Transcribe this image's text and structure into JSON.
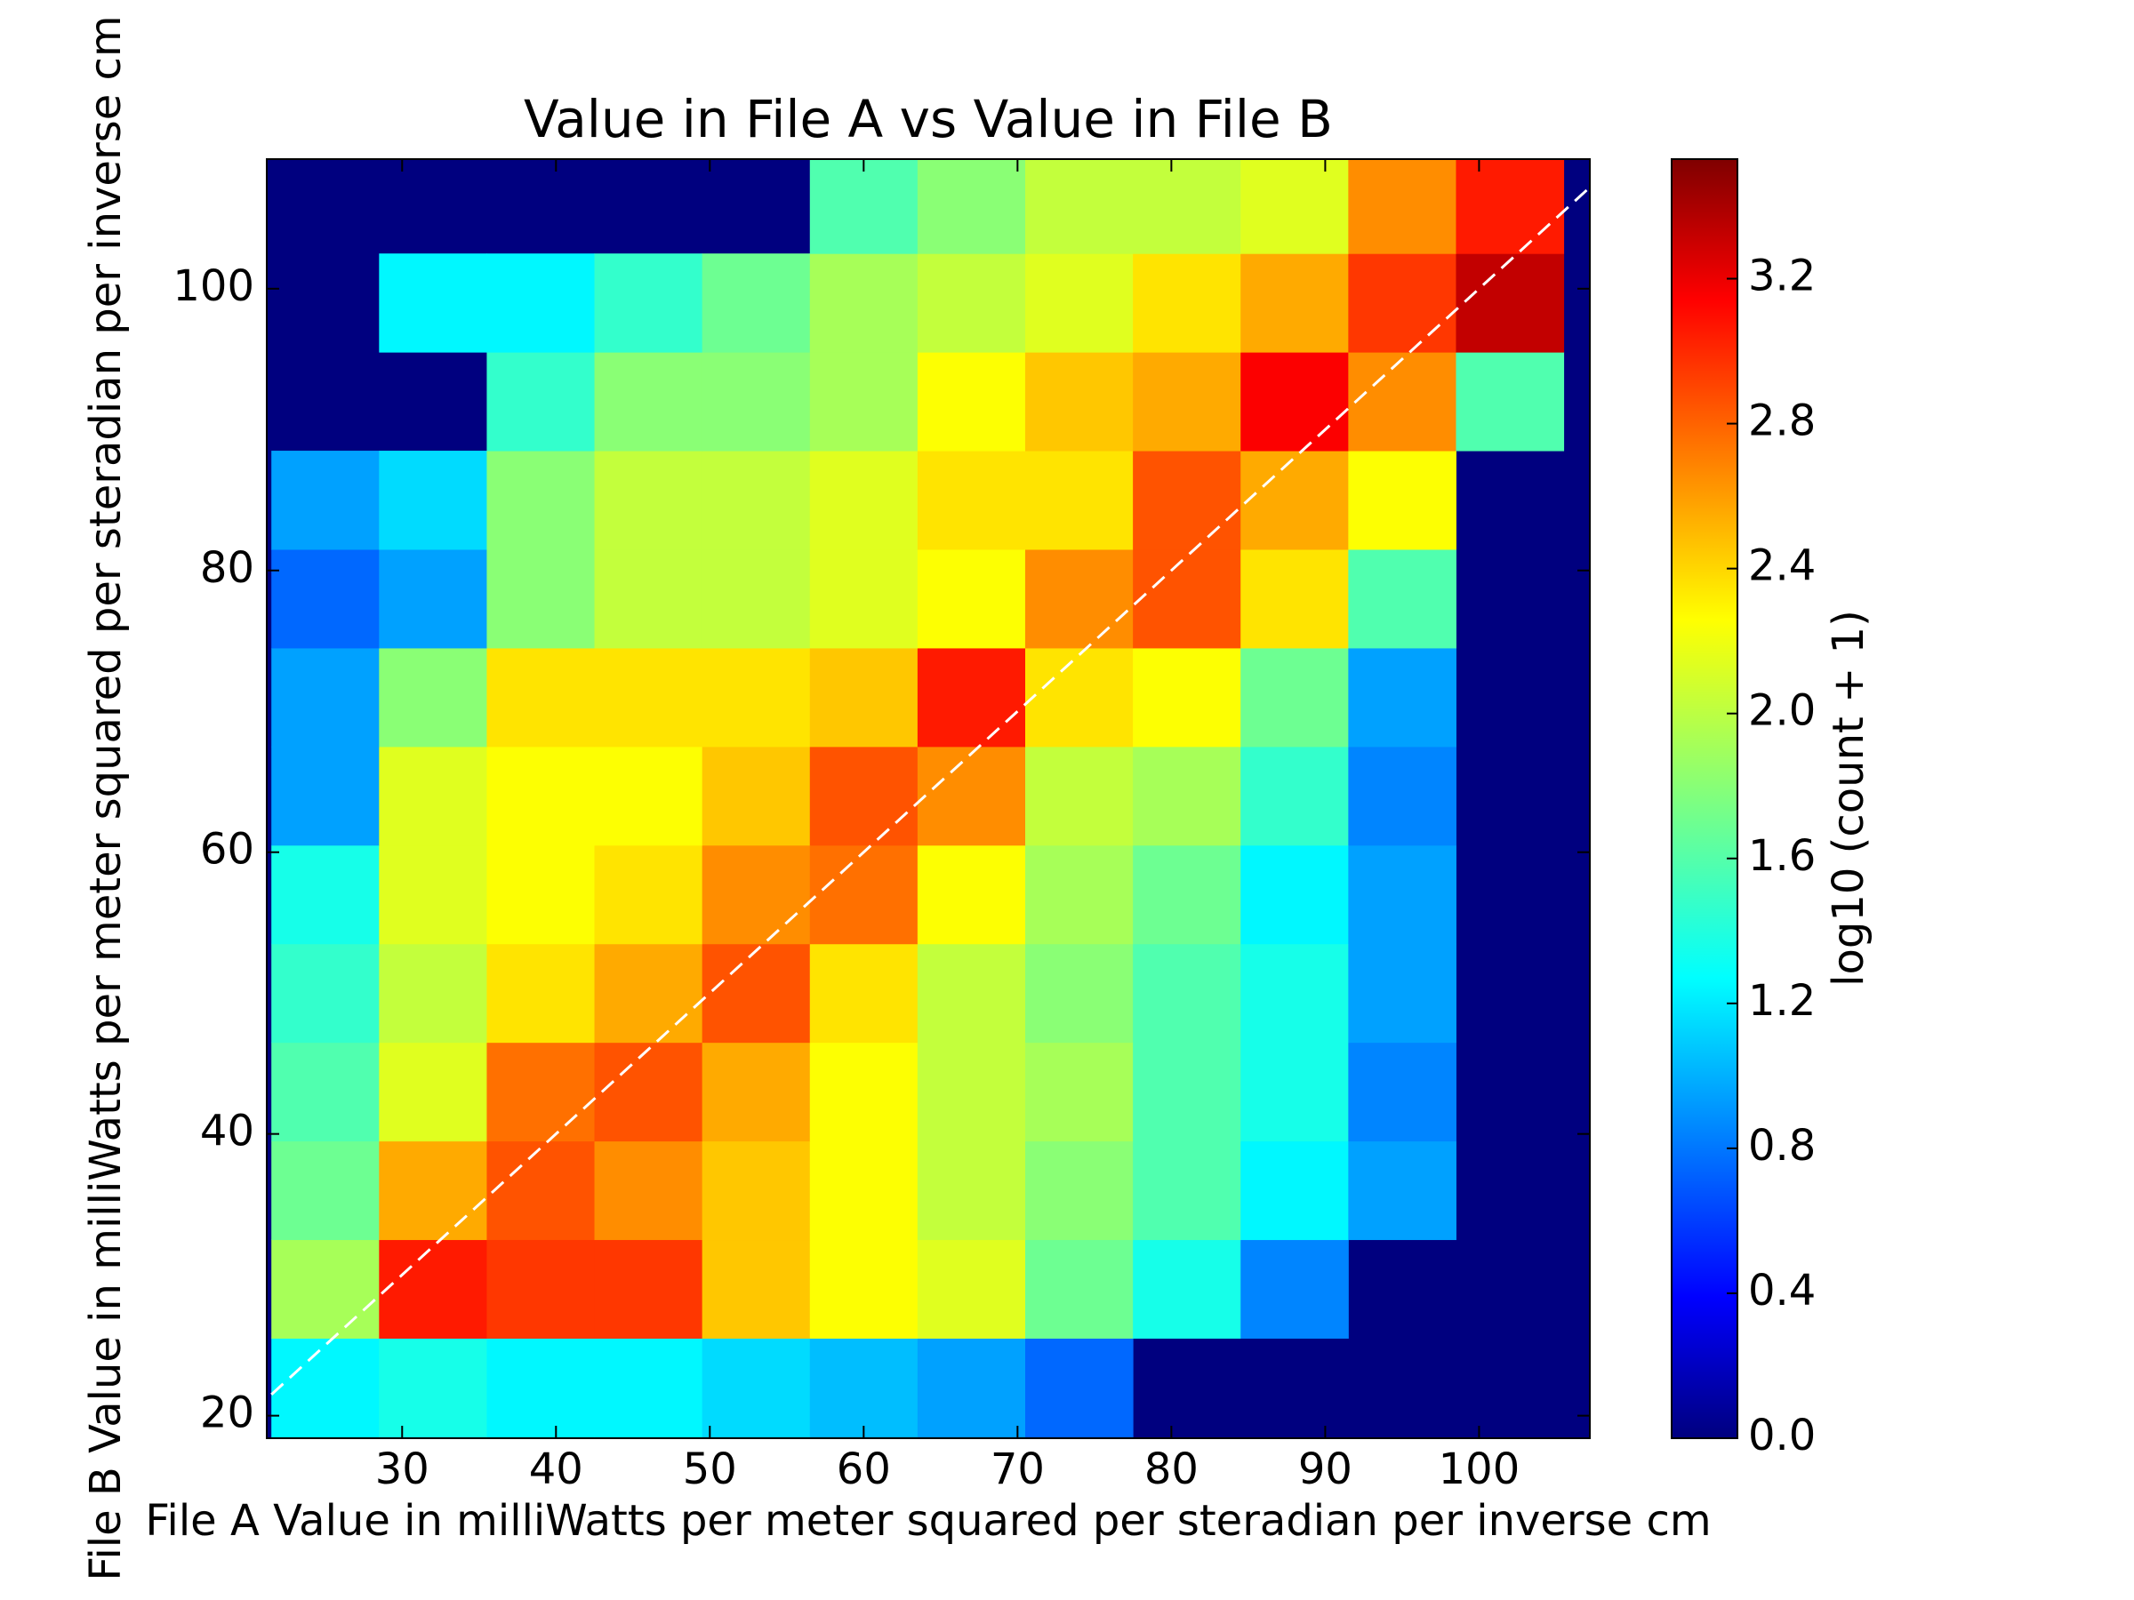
{
  "chart_data": {
    "type": "hexbin",
    "title": "Value in File A vs Value in File B",
    "x_label": "File A Value in milliWatts per meter squared per steradian per inverse cm",
    "y_label": "File B Value in milliWatts per meter squared per steradian per inverse cm",
    "colorbar_label": "log10 (count + 1)",
    "colormap": "jet",
    "background": "#00007f",
    "x": [
      25,
      32,
      39,
      46,
      53,
      60,
      67,
      74,
      81,
      88,
      95,
      102
    ],
    "y": [
      22,
      29,
      36,
      43,
      50,
      57,
      64,
      71,
      78,
      85,
      92,
      99,
      106
    ],
    "cell": [
      7,
      7
    ],
    "values": [
      [
        1.3,
        1.4,
        1.3,
        1.3,
        1.2,
        1.1,
        1.0,
        0.8,
        null,
        null,
        null,
        null
      ],
      [
        1.9,
        3.0,
        2.9,
        2.9,
        2.4,
        2.2,
        2.1,
        1.7,
        1.4,
        0.9,
        null,
        null
      ],
      [
        1.7,
        2.5,
        2.8,
        2.6,
        2.4,
        2.2,
        2.0,
        1.8,
        1.6,
        1.3,
        1.0,
        null
      ],
      [
        1.6,
        2.1,
        2.7,
        2.8,
        2.5,
        2.2,
        2.0,
        1.9,
        1.6,
        1.4,
        0.9,
        null
      ],
      [
        1.5,
        2.0,
        2.3,
        2.5,
        2.8,
        2.3,
        2.0,
        1.8,
        1.6,
        1.4,
        1.0,
        null
      ],
      [
        1.4,
        2.1,
        2.2,
        2.3,
        2.6,
        2.7,
        2.2,
        1.9,
        1.7,
        1.3,
        1.0,
        null
      ],
      [
        1.0,
        2.1,
        2.2,
        2.2,
        2.4,
        2.8,
        2.6,
        2.0,
        1.9,
        1.5,
        0.9,
        null
      ],
      [
        1.0,
        1.8,
        2.3,
        2.3,
        2.3,
        2.4,
        3.0,
        2.3,
        2.2,
        1.7,
        1.0,
        null
      ],
      [
        0.8,
        1.0,
        1.8,
        2.0,
        2.0,
        2.1,
        2.2,
        2.6,
        2.8,
        2.3,
        1.6,
        null
      ],
      [
        1.0,
        1.2,
        1.8,
        2.0,
        2.0,
        2.1,
        2.3,
        2.3,
        2.8,
        2.5,
        2.2,
        null
      ],
      [
        null,
        null,
        1.5,
        1.8,
        1.8,
        1.9,
        2.2,
        2.4,
        2.5,
        3.1,
        2.6,
        1.6
      ],
      [
        null,
        1.3,
        1.3,
        1.5,
        1.7,
        1.9,
        2.0,
        2.1,
        2.3,
        2.5,
        2.9,
        3.3
      ],
      [
        null,
        null,
        null,
        null,
        null,
        1.6,
        1.8,
        2.0,
        2.0,
        2.1,
        2.6,
        3.0
      ]
    ],
    "reference_line": {
      "x": [
        21.5,
        107.5
      ],
      "y": [
        21.5,
        107.5
      ],
      "color": "#ffffff",
      "dashed": true
    },
    "xlim": [
      21.2,
      107.2
    ],
    "ylim": [
      18.4,
      109.2
    ],
    "clim": [
      0,
      3.53
    ],
    "xticks": [
      30,
      40,
      50,
      60,
      70,
      80,
      90,
      100
    ],
    "yticks": [
      20,
      40,
      60,
      80,
      100
    ],
    "cticks": [
      {
        "value": 0,
        "label": "0.0"
      },
      0.4,
      0.8,
      1.2,
      1.6,
      {
        "value": 2,
        "label": "2.0"
      },
      2.4,
      2.8,
      3.2
    ]
  }
}
